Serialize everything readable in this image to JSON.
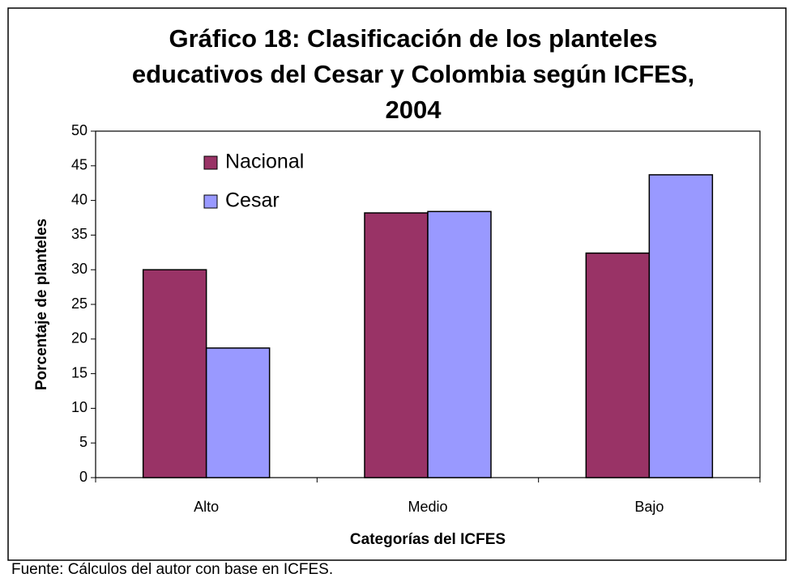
{
  "chart_data": {
    "type": "bar",
    "title": [
      "Gráfico 18: Clasificación de los planteles",
      "educativos del Cesar y Colombia según ICFES,",
      "2004"
    ],
    "x_label": "Categorías del ICFES",
    "y_label": "Porcentaje de planteles",
    "source": "Fuente: Cálculos del autor con base en ICFES.",
    "categories": [
      "Alto",
      "Medio",
      "Bajo"
    ],
    "series": [
      {
        "name": "Nacional",
        "color": "#993366",
        "values": [
          30,
          38.2,
          32.4
        ]
      },
      {
        "name": "Cesar",
        "color": "#9999ff",
        "values": [
          18.7,
          38.4,
          43.7
        ]
      }
    ],
    "ylim": [
      0,
      50
    ],
    "yticks": [
      0,
      5,
      10,
      15,
      20,
      25,
      30,
      35,
      40,
      45,
      50
    ],
    "grid": false,
    "legend": "upper left"
  }
}
